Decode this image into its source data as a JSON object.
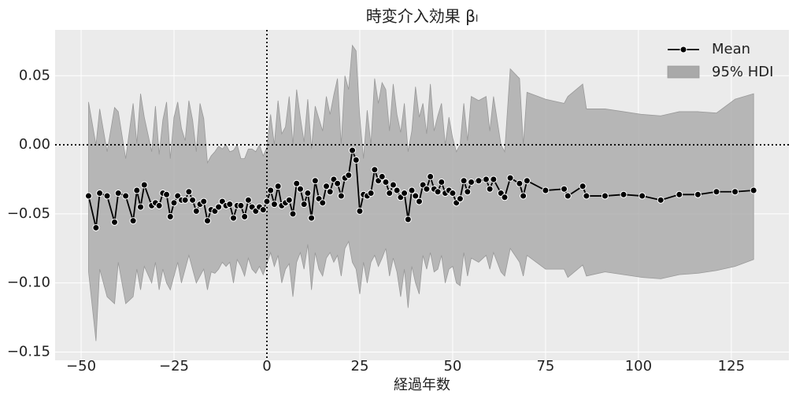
{
  "chart_data": {
    "type": "line",
    "title": "時変介入効果 βₗ",
    "xlabel": "経過年数",
    "x": [
      -48,
      -46,
      -45,
      -43,
      -41,
      -40,
      -38,
      -36,
      -35,
      -34,
      -33,
      -31,
      -30,
      -29,
      -28,
      -27,
      -26,
      -25,
      -24,
      -23,
      -22,
      -21,
      -20,
      -19,
      -18,
      -17,
      -16,
      -15,
      -14,
      -13,
      -12,
      -11,
      -10,
      -9,
      -8,
      -7,
      -6,
      -5,
      -4,
      -3,
      -2,
      -1,
      0,
      1,
      2,
      3,
      4,
      5,
      6,
      7,
      8,
      9,
      10,
      11,
      12,
      13,
      14,
      15,
      16,
      17,
      18,
      19,
      20,
      21,
      22,
      23,
      24,
      25,
      26,
      27,
      28,
      29,
      30,
      31,
      32,
      33,
      34,
      35,
      36,
      37,
      38,
      39,
      40,
      41,
      42,
      43,
      44,
      45,
      46,
      47,
      48,
      49,
      50,
      51,
      52,
      53,
      54,
      55,
      57,
      59,
      60,
      61,
      63,
      64,
      65.5,
      68,
      69,
      70,
      75,
      80,
      81,
      85,
      86,
      91,
      96,
      101,
      106,
      111,
      116,
      121,
      126,
      131
    ],
    "series": [
      {
        "name": "Mean",
        "color": "#000000",
        "values": [
          -0.037,
          -0.06,
          -0.035,
          -0.037,
          -0.056,
          -0.035,
          -0.037,
          -0.055,
          -0.033,
          -0.045,
          -0.029,
          -0.044,
          -0.042,
          -0.044,
          -0.035,
          -0.036,
          -0.052,
          -0.042,
          -0.037,
          -0.04,
          -0.04,
          -0.034,
          -0.04,
          -0.048,
          -0.043,
          -0.041,
          -0.055,
          -0.047,
          -0.048,
          -0.045,
          -0.041,
          -0.044,
          -0.043,
          -0.053,
          -0.044,
          -0.044,
          -0.052,
          -0.04,
          -0.045,
          -0.048,
          -0.045,
          -0.047,
          -0.041,
          -0.033,
          -0.043,
          -0.03,
          -0.044,
          -0.042,
          -0.04,
          -0.05,
          -0.028,
          -0.032,
          -0.043,
          -0.035,
          -0.053,
          -0.026,
          -0.039,
          -0.042,
          -0.03,
          -0.034,
          -0.025,
          -0.028,
          -0.037,
          -0.024,
          -0.022,
          -0.004,
          -0.011,
          -0.048,
          -0.036,
          -0.037,
          -0.035,
          -0.018,
          -0.026,
          -0.023,
          -0.027,
          -0.035,
          -0.029,
          -0.033,
          -0.038,
          -0.035,
          -0.054,
          -0.033,
          -0.037,
          -0.041,
          -0.029,
          -0.032,
          -0.023,
          -0.032,
          -0.034,
          -0.027,
          -0.035,
          -0.033,
          -0.035,
          -0.042,
          -0.039,
          -0.026,
          -0.034,
          -0.027,
          -0.026,
          -0.025,
          -0.032,
          -0.025,
          -0.035,
          -0.038,
          -0.024,
          -0.028,
          -0.037,
          -0.026,
          -0.033,
          -0.032,
          -0.037,
          -0.03,
          -0.037,
          -0.037,
          -0.036,
          -0.037,
          -0.04,
          -0.036,
          -0.036,
          -0.034,
          -0.034,
          -0.033
        ]
      }
    ],
    "band": {
      "name": "95% HDI",
      "color": "#a9a9a9",
      "upper": [
        0.031,
        0.0,
        0.026,
        -0.005,
        0.027,
        0.024,
        -0.01,
        0.03,
        0.001,
        0.037,
        0.02,
        -0.005,
        0.028,
        -0.007,
        0.018,
        0.031,
        -0.01,
        0.02,
        0.031,
        0.012,
        0.003,
        0.032,
        0.018,
        -0.005,
        0.03,
        0.019,
        -0.013,
        -0.008,
        -0.005,
        -0.001,
        -0.003,
        0.0,
        -0.005,
        -0.004,
        0.0,
        -0.01,
        -0.01,
        -0.003,
        -0.003,
        -0.005,
        0.0,
        -0.008,
        -0.002,
        0.022,
        0.0,
        0.032,
        0.008,
        0.013,
        0.035,
        0.0,
        0.04,
        0.02,
        0.002,
        0.033,
        -0.003,
        0.028,
        0.019,
        0.01,
        0.035,
        0.022,
        0.036,
        0.048,
        0.0,
        0.05,
        0.04,
        0.072,
        0.068,
        0.02,
        -0.01,
        0.025,
        0.0,
        0.048,
        0.03,
        0.045,
        0.04,
        0.01,
        0.044,
        0.022,
        0.009,
        0.03,
        -0.005,
        0.01,
        0.042,
        0.02,
        0.03,
        0.008,
        0.044,
        0.01,
        0.021,
        0.03,
        0.0,
        0.02,
        0.005,
        -0.005,
        0.0,
        0.03,
        0.003,
        0.035,
        0.032,
        0.035,
        0.01,
        0.035,
        0.0,
        -0.005,
        0.055,
        0.048,
        0.0,
        0.038,
        0.033,
        0.03,
        0.035,
        0.044,
        0.026,
        0.026,
        0.024,
        0.022,
        0.021,
        0.024,
        0.024,
        0.023,
        0.033,
        0.037
      ],
      "lower": [
        -0.092,
        -0.142,
        -0.09,
        -0.11,
        -0.115,
        -0.085,
        -0.115,
        -0.11,
        -0.09,
        -0.105,
        -0.088,
        -0.1,
        -0.085,
        -0.105,
        -0.09,
        -0.1,
        -0.105,
        -0.095,
        -0.085,
        -0.1,
        -0.09,
        -0.08,
        -0.09,
        -0.1,
        -0.095,
        -0.09,
        -0.105,
        -0.092,
        -0.093,
        -0.09,
        -0.085,
        -0.088,
        -0.085,
        -0.1,
        -0.083,
        -0.088,
        -0.095,
        -0.082,
        -0.09,
        -0.093,
        -0.088,
        -0.094,
        -0.086,
        -0.078,
        -0.088,
        -0.08,
        -0.1,
        -0.09,
        -0.086,
        -0.11,
        -0.085,
        -0.078,
        -0.09,
        -0.072,
        -0.105,
        -0.078,
        -0.09,
        -0.095,
        -0.082,
        -0.078,
        -0.085,
        -0.08,
        -0.095,
        -0.075,
        -0.07,
        -0.085,
        -0.09,
        -0.108,
        -0.085,
        -0.1,
        -0.085,
        -0.08,
        -0.088,
        -0.082,
        -0.075,
        -0.095,
        -0.082,
        -0.092,
        -0.11,
        -0.09,
        -0.118,
        -0.088,
        -0.1,
        -0.108,
        -0.08,
        -0.09,
        -0.078,
        -0.092,
        -0.09,
        -0.08,
        -0.1,
        -0.09,
        -0.088,
        -0.1,
        -0.102,
        -0.078,
        -0.095,
        -0.082,
        -0.085,
        -0.08,
        -0.09,
        -0.078,
        -0.092,
        -0.095,
        -0.075,
        -0.085,
        -0.095,
        -0.08,
        -0.09,
        -0.09,
        -0.096,
        -0.087,
        -0.095,
        -0.092,
        -0.094,
        -0.096,
        -0.097,
        -0.094,
        -0.093,
        -0.091,
        -0.088,
        -0.083
      ]
    },
    "xlim": [
      -57,
      140.5
    ],
    "ylim": [
      -0.156,
      0.0832
    ],
    "xticks": [
      {
        "value": -50,
        "label": "−50"
      },
      {
        "value": -25,
        "label": "−25"
      },
      0,
      25,
      50,
      75,
      100,
      125
    ],
    "yticks": [
      {
        "value": -0.15,
        "label": "−0.15"
      },
      {
        "value": -0.1,
        "label": "−0.10"
      },
      {
        "value": -0.05,
        "label": "−0.05"
      },
      {
        "value": 0,
        "label": "0.00"
      },
      0.05
    ],
    "reference_lines": {
      "x": 0,
      "y": 0
    },
    "grid": true,
    "legend": "upper right"
  }
}
